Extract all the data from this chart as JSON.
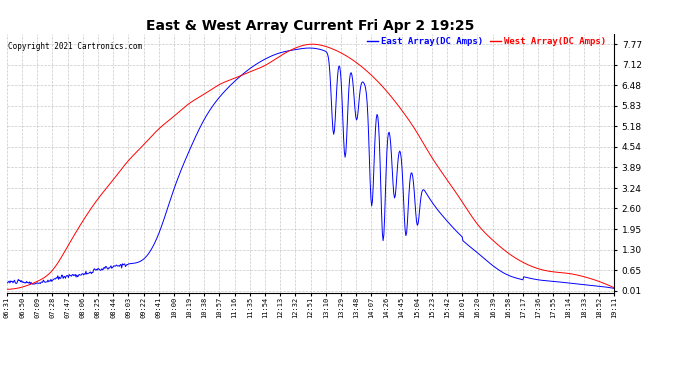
{
  "title": "East & West Array Current Fri Apr 2 19:25",
  "copyright": "Copyright 2021 Cartronics.com",
  "legend_east": "East Array(DC Amps)",
  "legend_west": "West Array(DC Amps)",
  "east_color": "blue",
  "west_color": "red",
  "background_color": "#ffffff",
  "grid_color": "#bbbbbb",
  "yticks": [
    0.01,
    0.65,
    1.3,
    1.95,
    2.6,
    3.24,
    3.89,
    4.54,
    5.18,
    5.83,
    6.48,
    7.12,
    7.77
  ],
  "ylim": [
    -0.05,
    8.1
  ],
  "xtick_labels": [
    "06:31",
    "06:50",
    "07:09",
    "07:28",
    "07:47",
    "08:06",
    "08:25",
    "08:44",
    "09:03",
    "09:22",
    "09:41",
    "10:00",
    "10:19",
    "10:38",
    "10:57",
    "11:16",
    "11:35",
    "11:54",
    "12:13",
    "12:32",
    "12:51",
    "13:10",
    "13:29",
    "13:48",
    "14:07",
    "14:26",
    "14:45",
    "15:04",
    "15:23",
    "15:42",
    "16:01",
    "16:20",
    "16:39",
    "16:58",
    "17:17",
    "17:36",
    "17:55",
    "18:14",
    "18:33",
    "18:52",
    "19:11"
  ]
}
